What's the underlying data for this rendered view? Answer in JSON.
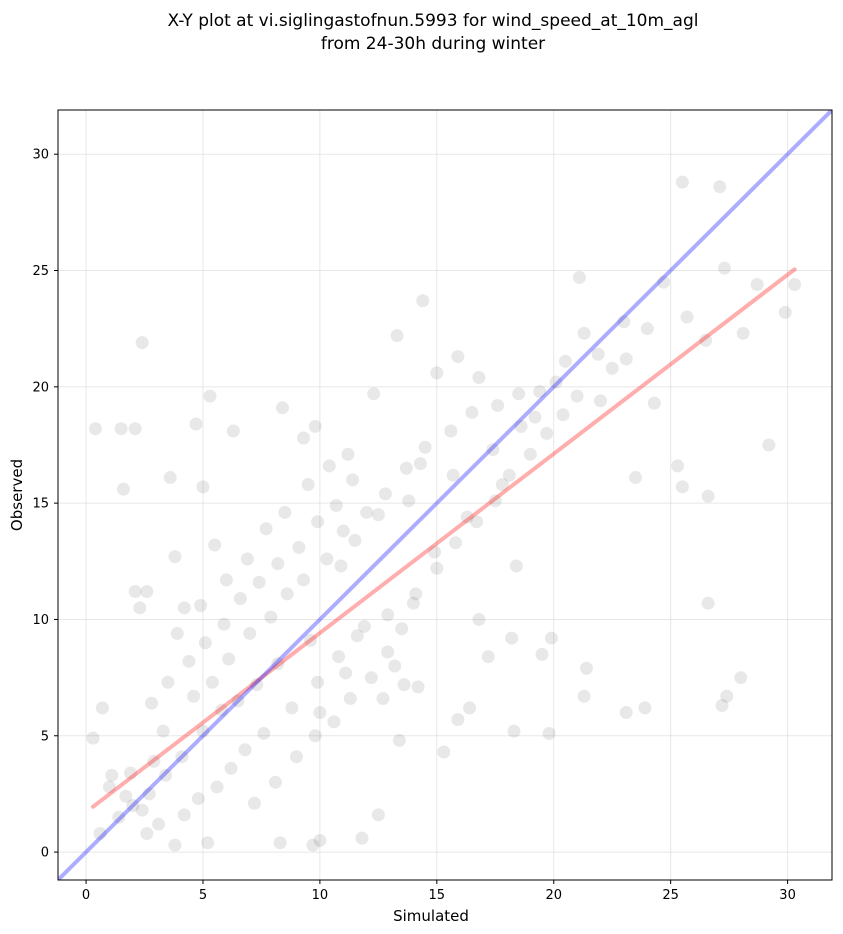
{
  "chart_data": {
    "type": "scatter",
    "title_lines": [
      "X-Y plot at vi.siglingastofnun.5993 for wind_speed_at_10m_agl",
      "from 24-30h during winter"
    ],
    "xlabel": "Simulated",
    "ylabel": "Observed",
    "xlim": [
      -1.2,
      31.9
    ],
    "ylim": [
      -1.2,
      31.9
    ],
    "x_ticks": [
      0,
      5,
      10,
      15,
      20,
      25,
      30
    ],
    "y_ticks": [
      0,
      5,
      10,
      15,
      20,
      25,
      30
    ],
    "grid": true,
    "point_color": "#000000",
    "point_opacity": 0.09,
    "points": [
      [
        0.4,
        18.2
      ],
      [
        1.5,
        18.2
      ],
      [
        2.1,
        18.2
      ],
      [
        2.4,
        21.9
      ],
      [
        1.6,
        15.6
      ],
      [
        3.6,
        16.1
      ],
      [
        4.7,
        18.4
      ],
      [
        5.0,
        15.7
      ],
      [
        5.3,
        19.6
      ],
      [
        6.3,
        18.1
      ],
      [
        8.4,
        19.1
      ],
      [
        9.3,
        17.8
      ],
      [
        9.8,
        18.3
      ],
      [
        12.3,
        19.7
      ],
      [
        13.3,
        22.2
      ],
      [
        14.4,
        23.7
      ],
      [
        15.0,
        20.6
      ],
      [
        15.9,
        21.3
      ],
      [
        16.8,
        20.4
      ],
      [
        21.1,
        24.7
      ],
      [
        25.5,
        28.8
      ],
      [
        27.1,
        28.6
      ],
      [
        27.3,
        25.1
      ],
      [
        28.7,
        24.4
      ],
      [
        30.3,
        24.4
      ],
      [
        29.9,
        23.2
      ],
      [
        28.1,
        22.3
      ],
      [
        26.5,
        22.0
      ],
      [
        25.7,
        23.0
      ],
      [
        24.7,
        24.5
      ],
      [
        24.0,
        22.5
      ],
      [
        23.1,
        21.2
      ],
      [
        25.3,
        16.6
      ],
      [
        25.5,
        15.7
      ],
      [
        26.6,
        15.3
      ],
      [
        29.2,
        17.5
      ],
      [
        23.5,
        16.1
      ],
      [
        26.6,
        10.7
      ],
      [
        27.2,
        6.3
      ],
      [
        27.4,
        6.7
      ],
      [
        28.0,
        7.5
      ],
      [
        23.1,
        6.0
      ],
      [
        23.9,
        6.2
      ],
      [
        21.3,
        6.7
      ],
      [
        21.4,
        7.9
      ],
      [
        19.9,
        9.2
      ],
      [
        19.5,
        8.5
      ],
      [
        18.3,
        5.2
      ],
      [
        19.8,
        5.1
      ],
      [
        18.2,
        9.2
      ],
      [
        16.4,
        6.2
      ],
      [
        15.9,
        5.7
      ],
      [
        15.3,
        4.3
      ],
      [
        17.2,
        8.4
      ],
      [
        16.8,
        10.0
      ],
      [
        18.4,
        12.3
      ],
      [
        13.4,
        4.8
      ],
      [
        11.8,
        0.6
      ],
      [
        12.5,
        1.6
      ],
      [
        10.0,
        0.5
      ],
      [
        9.7,
        0.3
      ],
      [
        8.3,
        0.4
      ],
      [
        5.2,
        0.4
      ],
      [
        3.8,
        0.3
      ],
      [
        2.6,
        0.8
      ],
      [
        0.6,
        0.8
      ],
      [
        0.3,
        4.9
      ],
      [
        0.7,
        6.2
      ],
      [
        2.1,
        11.2
      ],
      [
        2.3,
        10.5
      ],
      [
        3.8,
        12.7
      ],
      [
        4.2,
        10.5
      ],
      [
        5.5,
        13.2
      ],
      [
        2.6,
        11.2
      ],
      [
        20.1,
        20.2
      ],
      [
        19.4,
        19.8
      ],
      [
        20.5,
        21.1
      ],
      [
        18.6,
        18.3
      ],
      [
        17.4,
        17.3
      ],
      [
        21.9,
        21.4
      ],
      [
        22.5,
        20.8
      ],
      [
        24.3,
        19.3
      ],
      [
        23.0,
        22.8
      ],
      [
        22.0,
        19.4
      ],
      [
        19.2,
        18.7
      ],
      [
        21.3,
        22.3
      ],
      [
        17.8,
        15.8
      ],
      [
        15.7,
        16.2
      ],
      [
        14.9,
        12.9
      ],
      [
        16.3,
        14.4
      ],
      [
        14.3,
        16.7
      ],
      [
        13.8,
        15.1
      ],
      [
        12.5,
        14.5
      ],
      [
        11.5,
        13.4
      ],
      [
        10.9,
        12.3
      ],
      [
        11.9,
        9.7
      ],
      [
        12.9,
        10.2
      ],
      [
        14.0,
        10.7
      ],
      [
        13.2,
        8.0
      ],
      [
        12.7,
        6.6
      ],
      [
        13.6,
        7.2
      ],
      [
        14.2,
        7.1
      ],
      [
        11.1,
        7.7
      ],
      [
        10.0,
        6.0
      ],
      [
        9.6,
        9.1
      ],
      [
        8.2,
        8.1
      ],
      [
        7.3,
        7.2
      ],
      [
        6.5,
        6.5
      ],
      [
        5.8,
        6.1
      ],
      [
        5.0,
        5.2
      ],
      [
        4.1,
        4.1
      ],
      [
        3.4,
        3.3
      ],
      [
        2.7,
        2.5
      ],
      [
        2.0,
        2.0
      ],
      [
        1.4,
        1.5
      ],
      [
        1.0,
        2.8
      ],
      [
        1.9,
        3.4
      ],
      [
        2.9,
        3.9
      ],
      [
        3.3,
        5.2
      ],
      [
        4.6,
        6.7
      ],
      [
        5.4,
        7.3
      ],
      [
        6.1,
        8.3
      ],
      [
        7.0,
        9.4
      ],
      [
        7.9,
        10.1
      ],
      [
        8.6,
        11.1
      ],
      [
        9.3,
        11.7
      ],
      [
        10.3,
        12.6
      ],
      [
        11.0,
        13.8
      ],
      [
        12.0,
        14.6
      ],
      [
        12.8,
        15.4
      ],
      [
        13.7,
        16.5
      ],
      [
        14.5,
        17.4
      ],
      [
        15.6,
        18.1
      ],
      [
        16.5,
        18.9
      ],
      [
        17.6,
        19.2
      ],
      [
        18.5,
        19.7
      ],
      [
        8.8,
        6.2
      ],
      [
        9.9,
        7.3
      ],
      [
        10.8,
        8.4
      ],
      [
        11.6,
        9.3
      ],
      [
        7.6,
        5.1
      ],
      [
        6.8,
        4.4
      ],
      [
        6.2,
        3.6
      ],
      [
        5.6,
        2.8
      ],
      [
        4.8,
        2.3
      ],
      [
        4.2,
        1.6
      ],
      [
        3.1,
        1.2
      ],
      [
        2.4,
        1.8
      ],
      [
        1.7,
        2.4
      ],
      [
        1.1,
        3.3
      ],
      [
        7.2,
        2.1
      ],
      [
        8.1,
        3.0
      ],
      [
        9.0,
        4.1
      ],
      [
        9.8,
        5.0
      ],
      [
        10.6,
        5.6
      ],
      [
        11.3,
        6.6
      ],
      [
        12.2,
        7.5
      ],
      [
        12.9,
        8.6
      ],
      [
        13.5,
        9.6
      ],
      [
        14.1,
        11.1
      ],
      [
        15.0,
        12.2
      ],
      [
        15.8,
        13.3
      ],
      [
        16.7,
        14.2
      ],
      [
        17.5,
        15.1
      ],
      [
        18.1,
        16.2
      ],
      [
        19.0,
        17.1
      ],
      [
        19.7,
        18.0
      ],
      [
        20.4,
        18.8
      ],
      [
        21.0,
        19.6
      ],
      [
        5.1,
        9.0
      ],
      [
        5.9,
        9.8
      ],
      [
        6.6,
        10.9
      ],
      [
        7.4,
        11.6
      ],
      [
        8.2,
        12.4
      ],
      [
        9.1,
        13.1
      ],
      [
        9.9,
        14.2
      ],
      [
        10.7,
        14.9
      ],
      [
        11.4,
        16.0
      ],
      [
        3.5,
        7.3
      ],
      [
        4.4,
        8.2
      ],
      [
        2.8,
        6.4
      ],
      [
        3.9,
        9.4
      ],
      [
        4.9,
        10.6
      ],
      [
        6.0,
        11.7
      ],
      [
        6.9,
        12.6
      ],
      [
        7.7,
        13.9
      ],
      [
        8.5,
        14.6
      ],
      [
        9.5,
        15.8
      ],
      [
        10.4,
        16.6
      ],
      [
        11.2,
        17.1
      ]
    ],
    "series": [
      {
        "name": "",
        "color": "#ff0000",
        "opacity": 0.32,
        "x": [
          0.3,
          30.3
        ],
        "y": [
          1.95,
          25.05
        ]
      },
      {
        "name": "",
        "color": "#0000ff",
        "opacity": 0.32,
        "x": [
          -1.2,
          31.9
        ],
        "y": [
          -1.2,
          31.9
        ]
      }
    ]
  }
}
